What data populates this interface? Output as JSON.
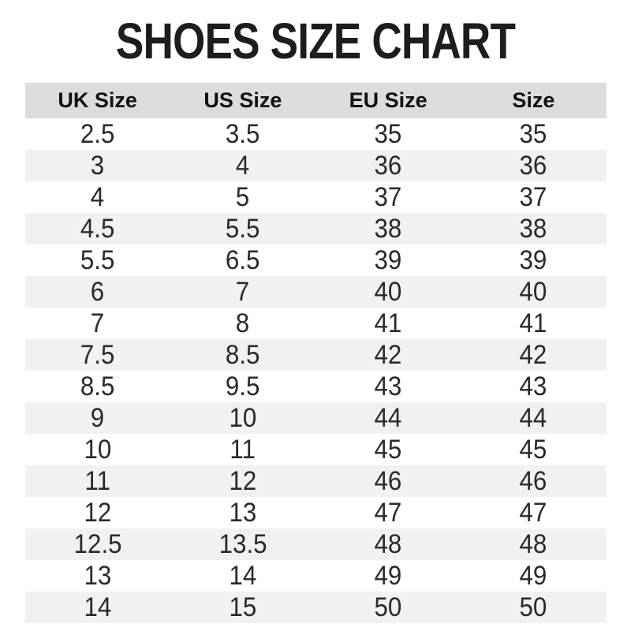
{
  "page": {
    "title": "SHOES SIZE CHART"
  },
  "theme": {
    "page_bg": "#ffffff",
    "header_bg": "#dcdcdc",
    "row_bg": "#ffffff",
    "row_alt_bg": "#f1f1f1",
    "title_color": "#1d1d1d",
    "header_text": "#111111",
    "cell_text": "#2a2a2a"
  },
  "chart_data": {
    "type": "table",
    "title": "SHOES SIZE CHART",
    "columns": [
      "UK Size",
      "US Size",
      "EU Size",
      "Size"
    ],
    "rows": [
      [
        "2.5",
        "3.5",
        "35",
        "35"
      ],
      [
        "3",
        "4",
        "36",
        "36"
      ],
      [
        "4",
        "5",
        "37",
        "37"
      ],
      [
        "4.5",
        "5.5",
        "38",
        "38"
      ],
      [
        "5.5",
        "6.5",
        "39",
        "39"
      ],
      [
        "6",
        "7",
        "40",
        "40"
      ],
      [
        "7",
        "8",
        "41",
        "41"
      ],
      [
        "7.5",
        "8.5",
        "42",
        "42"
      ],
      [
        "8.5",
        "9.5",
        "43",
        "43"
      ],
      [
        "9",
        "10",
        "44",
        "44"
      ],
      [
        "10",
        "11",
        "45",
        "45"
      ],
      [
        "11",
        "12",
        "46",
        "46"
      ],
      [
        "12",
        "13",
        "47",
        "47"
      ],
      [
        "12.5",
        "13.5",
        "48",
        "48"
      ],
      [
        "13",
        "14",
        "49",
        "49"
      ],
      [
        "14",
        "15",
        "50",
        "50"
      ]
    ],
    "layout": {
      "row_striping": "even rows shaded",
      "alignment": "center"
    }
  }
}
